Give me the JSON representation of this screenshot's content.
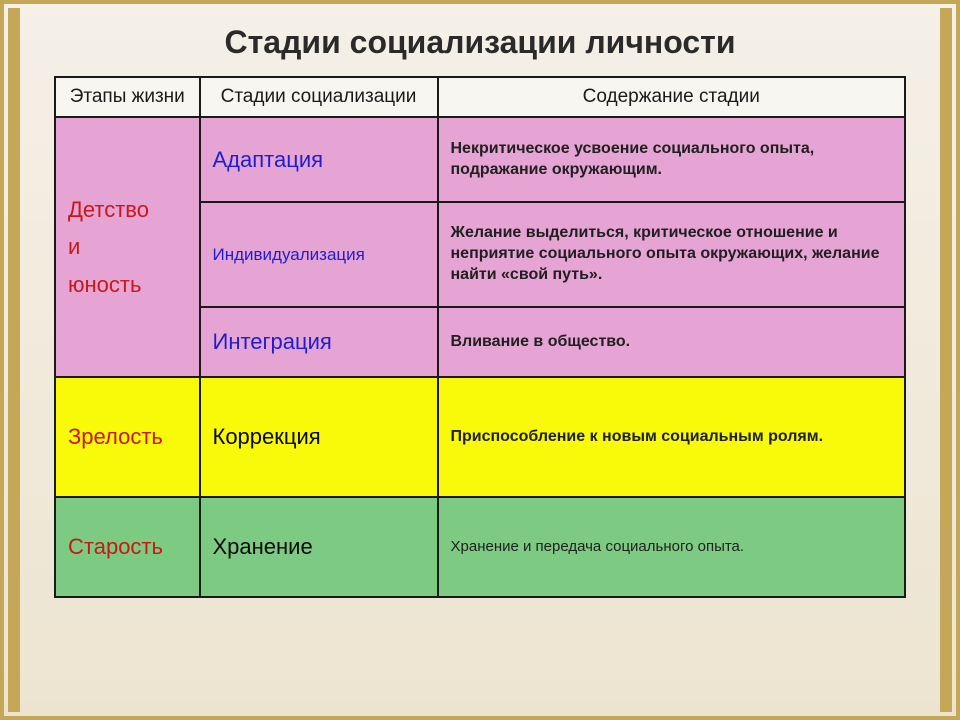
{
  "colors": {
    "pink": "#e6a4d4",
    "yellow": "#f9f90a",
    "green": "#7dca82",
    "red": "#c81818",
    "blue": "#1e1ecc"
  },
  "title": "Стадии социализации личности",
  "headers": {
    "col1": "Этапы жизни",
    "col2": "Стадии социализации",
    "col3": "Содержание стадии"
  },
  "rows": {
    "childhood": {
      "life_stage_line1": "Детство",
      "life_stage_line2": "и",
      "life_stage_line3": "юность",
      "sub1_stage": "Адаптация",
      "sub1_content": "Некритическое усвоение социального опыта, подражание окружающим.",
      "sub2_stage": "Индивидуализация",
      "sub2_content": "Желание выделиться, критическое отношение и неприятие социального опыта окружающих, желание найти «свой путь».",
      "sub3_stage": "Интеграция",
      "sub3_content": "Вливание в общество."
    },
    "maturity": {
      "life_stage": "Зрелость",
      "stage": "Коррекция",
      "content": "Приспособление к новым социальным ролям."
    },
    "old_age": {
      "life_stage": "Старость",
      "stage": "Хранение",
      "content": "Хранение и передача социального опыта."
    }
  }
}
